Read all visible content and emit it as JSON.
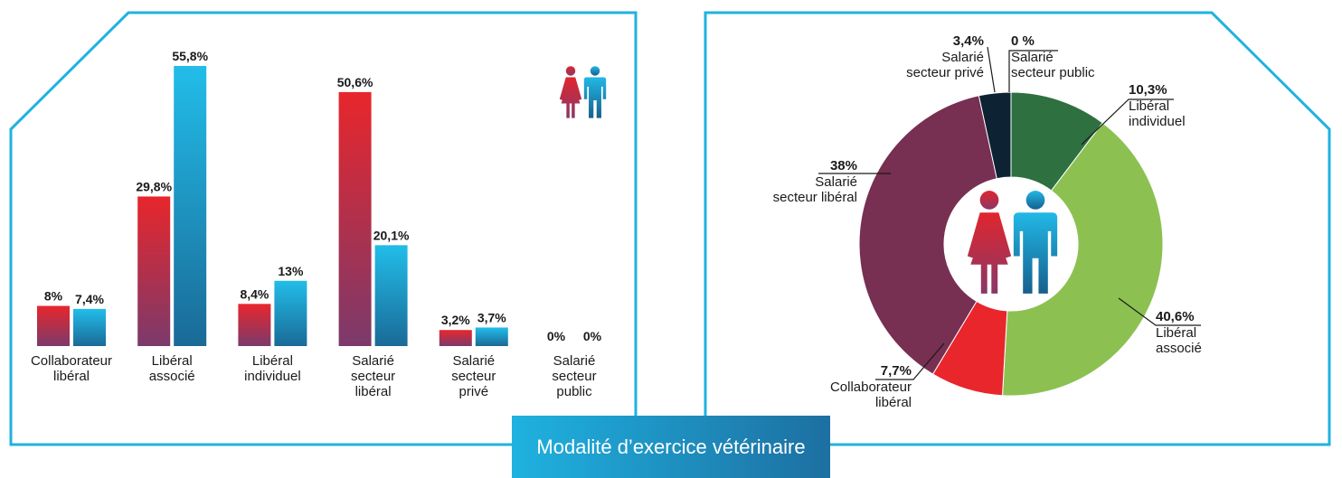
{
  "caption": "Modalité d’exercice vétérinaire",
  "chart_data": [
    {
      "type": "bar",
      "categories": [
        [
          "Collaborateur",
          "libéral"
        ],
        [
          "Libéral",
          "associé"
        ],
        [
          "Libéral",
          "individuel"
        ],
        [
          "Salarié",
          "secteur",
          "libéral"
        ],
        [
          "Salarié",
          "secteur",
          "privé"
        ],
        [
          "Salarié",
          "secteur",
          "public"
        ]
      ],
      "series": [
        {
          "values": [
            8,
            29.8,
            8.4,
            50.6,
            3.2,
            0
          ],
          "labels": [
            "8%",
            "29,8%",
            "8,4%",
            "50,6%",
            "3,2%",
            "0%"
          ],
          "color_top": "#e8262c",
          "color_bottom": "#7b3a6b"
        },
        {
          "values": [
            7.4,
            55.8,
            13,
            20.1,
            3.7,
            0
          ],
          "labels": [
            "7,4%",
            "55,8%",
            "13%",
            "20,1%",
            "3,7%",
            "0%"
          ],
          "color_top": "#22bde9",
          "color_bottom": "#1a6a97"
        }
      ],
      "ylim": [
        0,
        55.8
      ],
      "legend": {
        "icons": [
          "woman-icon",
          "man-icon"
        ],
        "colors": [
          "#d9262e",
          "#1fa8d8"
        ]
      }
    },
    {
      "type": "pie",
      "donut": true,
      "slices": [
        {
          "label": [
            "Libéral",
            "individuel"
          ],
          "value": 10.3,
          "display": "10,3%",
          "color": "#2e7040"
        },
        {
          "label": [
            "Libéral",
            "associé"
          ],
          "value": 40.6,
          "display": "40,6%",
          "color": "#8cc152"
        },
        {
          "label": [
            "Collaborateur",
            "libéral"
          ],
          "value": 7.7,
          "display": "7,7%",
          "color": "#e8262c"
        },
        {
          "label": [
            "Salarié",
            "secteur libéral"
          ],
          "value": 38,
          "display": "38%",
          "color": "#772f52"
        },
        {
          "label": [
            "Salarié",
            "secteur privé"
          ],
          "value": 3.4,
          "display": "3,4%",
          "color": "#0d2233"
        },
        {
          "label": [
            "Salarié",
            "secteur public"
          ],
          "value": 0,
          "display": "0 %",
          "color": "#ffffff"
        }
      ],
      "legend": {
        "icons": [
          "woman-icon",
          "man-icon"
        ],
        "colors": [
          "#d9262e",
          "#1fa8d8"
        ]
      }
    }
  ]
}
